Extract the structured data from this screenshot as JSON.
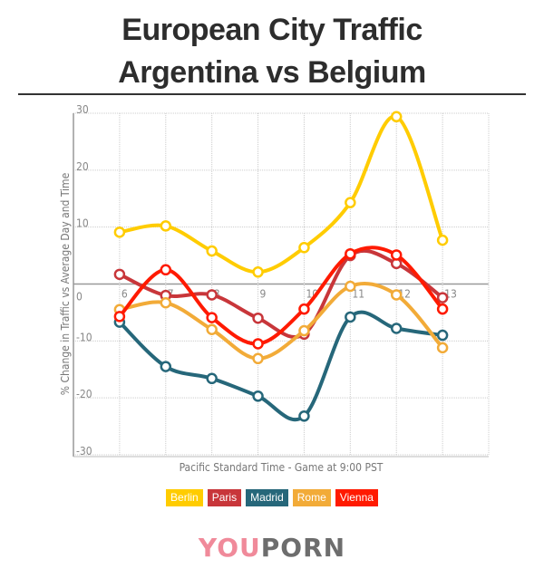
{
  "title_line1": "European City Traffic",
  "title_line2": "Argentina vs Belgium",
  "chart_data": {
    "type": "line",
    "title": "European City Traffic Argentina vs Belgium",
    "xlabel": "Pacific Standard Time - Game at 9:00 PST",
    "ylabel": "% Change in Traffic vs Average Day and Time",
    "x": [
      6,
      7,
      8,
      9,
      10,
      11,
      12,
      13
    ],
    "xlim": [
      5,
      14
    ],
    "ylim": [
      -30,
      30
    ],
    "yticks": [
      30,
      20,
      10,
      0,
      -10,
      -20,
      -30
    ],
    "grid": true,
    "smooth": true,
    "legend_position": "bottom",
    "series": [
      {
        "name": "Berlin",
        "color": "#ffcc00",
        "values": [
          9.1,
          10.2,
          5.8,
          2.1,
          6.4,
          14.3,
          29.4,
          7.7
        ]
      },
      {
        "name": "Paris",
        "color": "#c8363a",
        "values": [
          1.7,
          -2.0,
          -1.9,
          -6.0,
          -8.8,
          5.0,
          3.6,
          -2.4
        ]
      },
      {
        "name": "Madrid",
        "color": "#26677a",
        "values": [
          -6.7,
          -14.5,
          -16.6,
          -19.7,
          -23.2,
          -5.8,
          -7.8,
          -9.0
        ]
      },
      {
        "name": "Rome",
        "color": "#f2ab38",
        "values": [
          -4.5,
          -3.3,
          -8.0,
          -13.1,
          -8.2,
          -0.4,
          -1.9,
          -11.2
        ]
      },
      {
        "name": "Vienna",
        "color": "#ff1a00",
        "values": [
          -5.7,
          2.5,
          -5.9,
          -10.5,
          -4.4,
          5.3,
          5.1,
          -4.4
        ]
      }
    ]
  },
  "logo": {
    "text_pink": "YOU",
    "text_gray": "PORN",
    "pink": "#f08a9a",
    "gray": "#6d6d6d"
  }
}
